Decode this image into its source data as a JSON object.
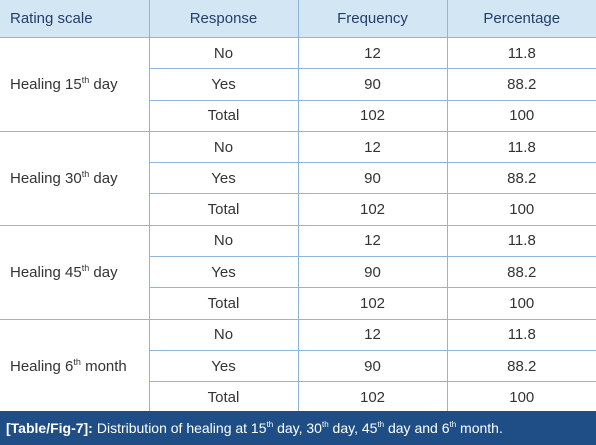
{
  "table": {
    "header": [
      "Rating scale",
      "Response",
      "Frequency",
      "Percentage"
    ],
    "groups": [
      {
        "label": [
          "Healing 15",
          "th",
          " day"
        ],
        "rows": [
          [
            "No",
            12,
            11.8
          ],
          [
            "Yes",
            90,
            88.2
          ],
          [
            "Total",
            102,
            100
          ]
        ]
      },
      {
        "label": [
          "Healing 30",
          "th",
          " day"
        ],
        "rows": [
          [
            "No",
            12,
            11.8
          ],
          [
            "Yes",
            90,
            88.2
          ],
          [
            "Total",
            102,
            100
          ]
        ]
      },
      {
        "label": [
          "Healing 45",
          "th",
          " day"
        ],
        "rows": [
          [
            "No",
            12,
            11.8
          ],
          [
            "Yes",
            90,
            88.2
          ],
          [
            "Total",
            102,
            100
          ]
        ]
      },
      {
        "label": [
          "Healing 6",
          "th",
          " month"
        ],
        "rows": [
          [
            "No",
            12,
            11.8
          ],
          [
            "Yes",
            90,
            88.2
          ],
          [
            "Total",
            102,
            100
          ]
        ]
      }
    ]
  },
  "caption": {
    "label": "[Table/Fig-7]:",
    "parts": [
      "Distribution of healing at 15",
      "th",
      " day, 30",
      "th",
      " day, 45",
      "th",
      " day and 6",
      "th",
      " month."
    ]
  }
}
